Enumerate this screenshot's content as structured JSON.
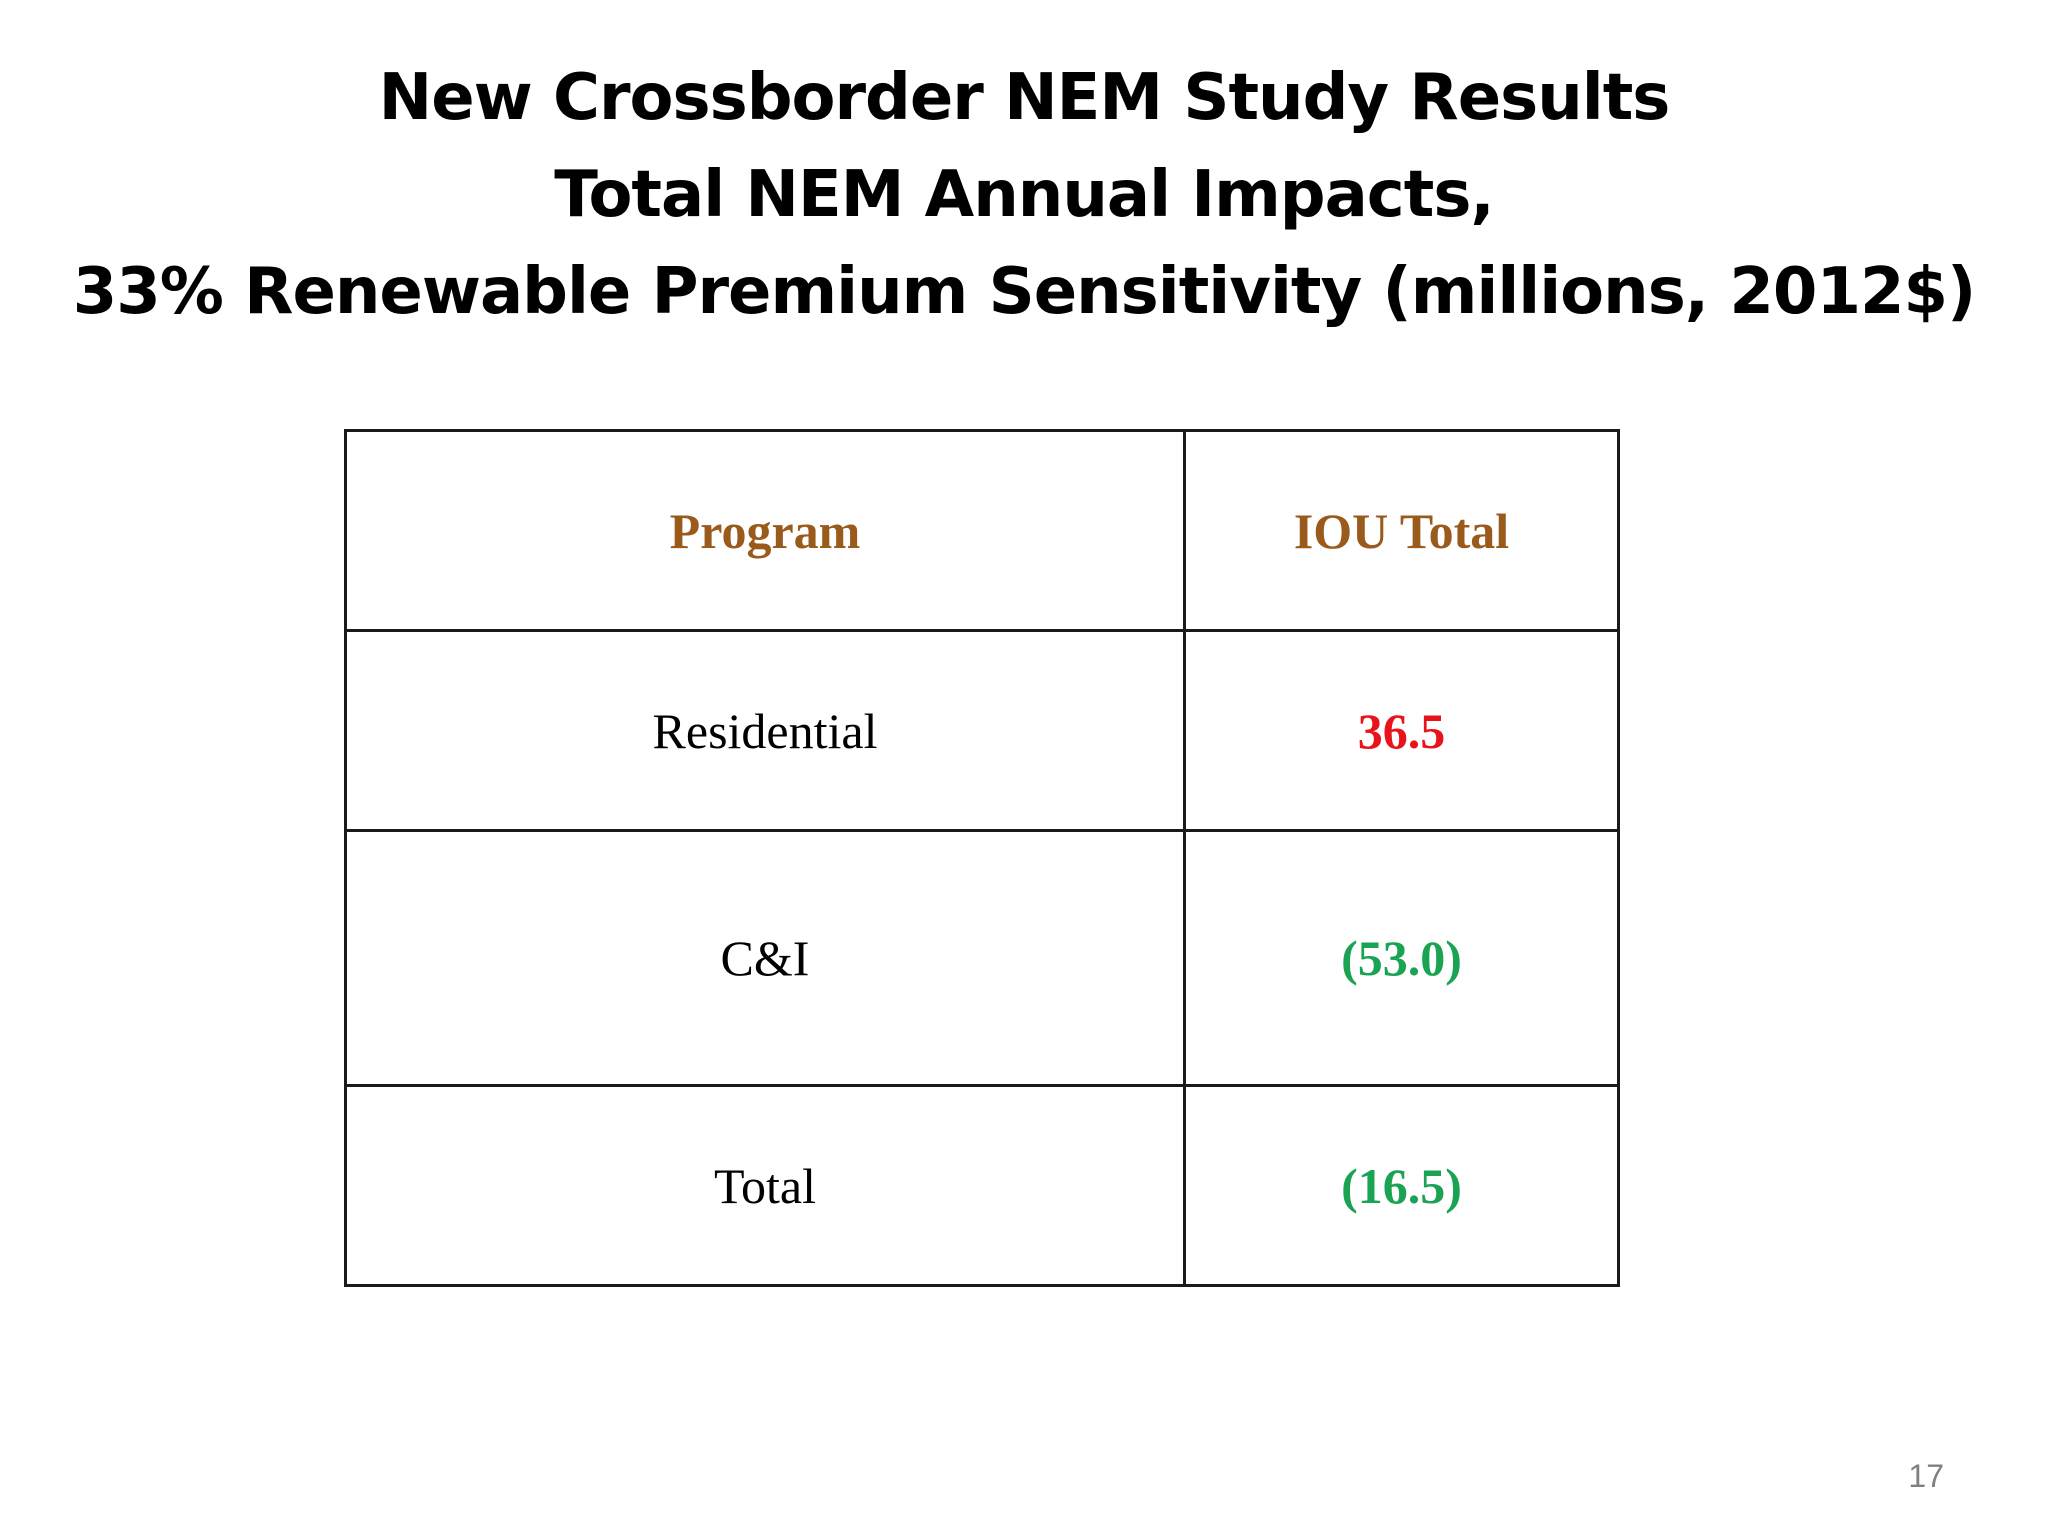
{
  "slide": {
    "title_lines": [
      "New Crossborder NEM Study Results",
      "Total NEM Annual Impacts,",
      "33% Renewable Premium Sensitivity (millions, 2012$)"
    ],
    "page_number": "17"
  },
  "table": {
    "headers": {
      "program": "Program",
      "iou_total": "IOU Total"
    },
    "rows": [
      {
        "program": "Residential",
        "iou_total": "36.5",
        "value_color": "#e8141c"
      },
      {
        "program": "C&I",
        "iou_total": "(53.0)",
        "value_color": "#1aa352"
      },
      {
        "program": "Total",
        "iou_total": "(16.5)",
        "value_color": "#1aa352"
      }
    ],
    "header_color": "#9a5a1c"
  }
}
